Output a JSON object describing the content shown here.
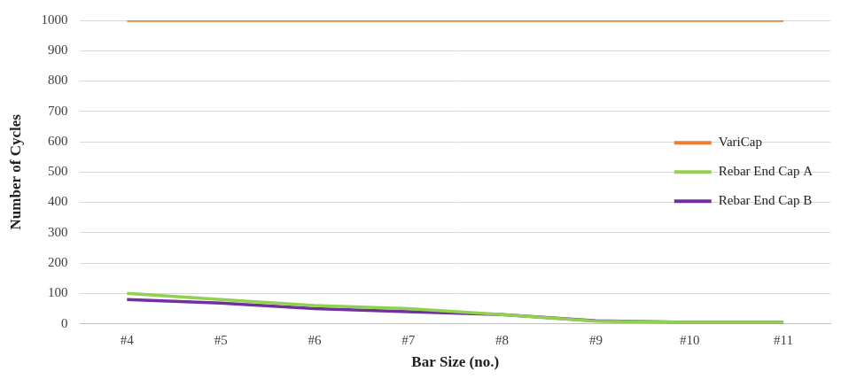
{
  "chart_data": {
    "type": "line",
    "categories": [
      "#4",
      "#5",
      "#6",
      "#7",
      "#8",
      "#9",
      "#10",
      "#11"
    ],
    "series": [
      {
        "name": "VariCap",
        "color": "#ed7d31",
        "values": [
          1000,
          1000,
          1000,
          1000,
          1000,
          1000,
          1000,
          1000
        ]
      },
      {
        "name": "Rebar End Cap A",
        "color": "#92d050",
        "values": [
          100,
          80,
          60,
          50,
          30,
          8,
          5,
          5
        ]
      },
      {
        "name": "Rebar End Cap B",
        "color": "#7030a0",
        "values": [
          80,
          68,
          50,
          40,
          30,
          10,
          5,
          5
        ]
      }
    ],
    "x_label": "Bar Size (no.)",
    "y_label": "Number of Cycles",
    "ylim": [
      0,
      1000
    ],
    "yticks": [
      0,
      100,
      200,
      300,
      400,
      500,
      600,
      700,
      800,
      900,
      1000
    ],
    "grid": true,
    "legend": "right"
  }
}
